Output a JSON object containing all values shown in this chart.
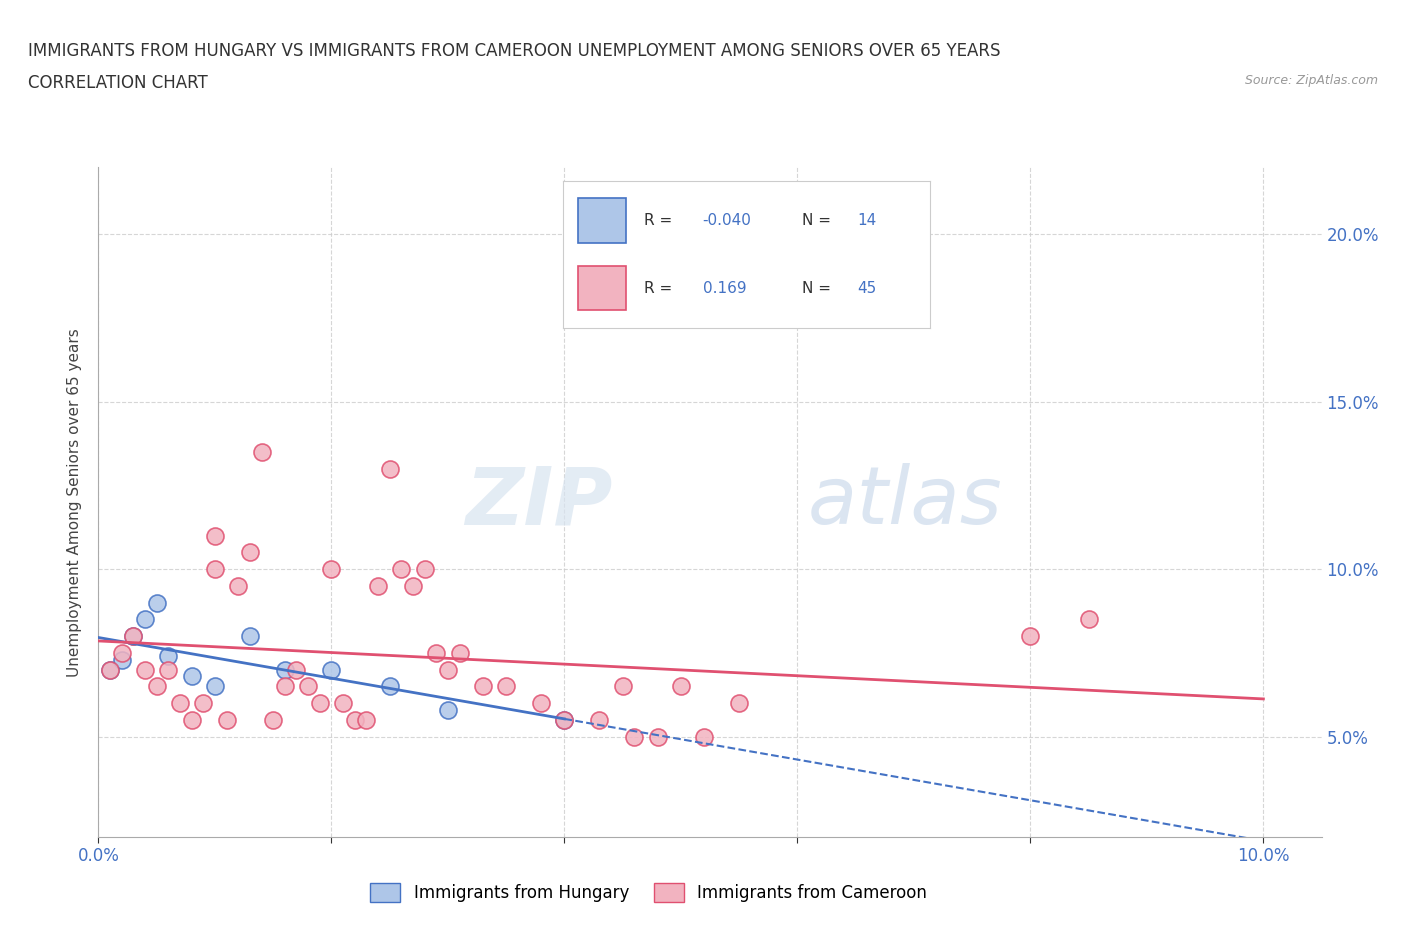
{
  "title_line1": "IMMIGRANTS FROM HUNGARY VS IMMIGRANTS FROM CAMEROON UNEMPLOYMENT AMONG SENIORS OVER 65 YEARS",
  "title_line2": "CORRELATION CHART",
  "source": "Source: ZipAtlas.com",
  "ylabel": "Unemployment Among Seniors over 65 years",
  "xlim": [
    0.0,
    0.105
  ],
  "ylim": [
    0.02,
    0.22
  ],
  "xticks": [
    0.0,
    0.02,
    0.04,
    0.06,
    0.08,
    0.1
  ],
  "yticks": [
    0.05,
    0.1,
    0.15,
    0.2
  ],
  "xticklabels": [
    "0.0%",
    "",
    "",
    "",
    "",
    "10.0%"
  ],
  "yticklabels": [
    "5.0%",
    "10.0%",
    "15.0%",
    "20.0%"
  ],
  "legend_labels": [
    "Immigrants from Hungary",
    "Immigrants from Cameroon"
  ],
  "hungary_color": "#aec6e8",
  "cameroon_color": "#f2b3c0",
  "hungary_line_color": "#4472c4",
  "cameroon_line_color": "#e05070",
  "hungary_R": -0.04,
  "hungary_N": 14,
  "cameroon_R": 0.169,
  "cameroon_N": 45,
  "watermark_zip": "ZIP",
  "watermark_atlas": "atlas",
  "hungary_x": [
    0.001,
    0.002,
    0.003,
    0.004,
    0.005,
    0.006,
    0.008,
    0.01,
    0.013,
    0.016,
    0.02,
    0.025,
    0.03,
    0.04
  ],
  "hungary_y": [
    0.07,
    0.073,
    0.08,
    0.085,
    0.09,
    0.074,
    0.068,
    0.065,
    0.08,
    0.07,
    0.07,
    0.065,
    0.058,
    0.055
  ],
  "cameroon_x": [
    0.001,
    0.002,
    0.003,
    0.004,
    0.005,
    0.006,
    0.007,
    0.008,
    0.009,
    0.01,
    0.01,
    0.011,
    0.012,
    0.013,
    0.014,
    0.015,
    0.016,
    0.017,
    0.018,
    0.019,
    0.02,
    0.021,
    0.022,
    0.023,
    0.024,
    0.025,
    0.026,
    0.027,
    0.028,
    0.029,
    0.03,
    0.031,
    0.033,
    0.035,
    0.038,
    0.04,
    0.043,
    0.045,
    0.046,
    0.048,
    0.05,
    0.052,
    0.055,
    0.08,
    0.085
  ],
  "cameroon_y": [
    0.07,
    0.075,
    0.08,
    0.07,
    0.065,
    0.07,
    0.06,
    0.055,
    0.06,
    0.1,
    0.11,
    0.055,
    0.095,
    0.105,
    0.135,
    0.055,
    0.065,
    0.07,
    0.065,
    0.06,
    0.1,
    0.06,
    0.055,
    0.055,
    0.095,
    0.13,
    0.1,
    0.095,
    0.1,
    0.075,
    0.07,
    0.075,
    0.065,
    0.065,
    0.06,
    0.055,
    0.055,
    0.065,
    0.05,
    0.05,
    0.065,
    0.05,
    0.06,
    0.08,
    0.085
  ],
  "grid_color": "#cccccc",
  "right_tick_color": "#4472c4",
  "bottom_tick_color": "#4472c4"
}
